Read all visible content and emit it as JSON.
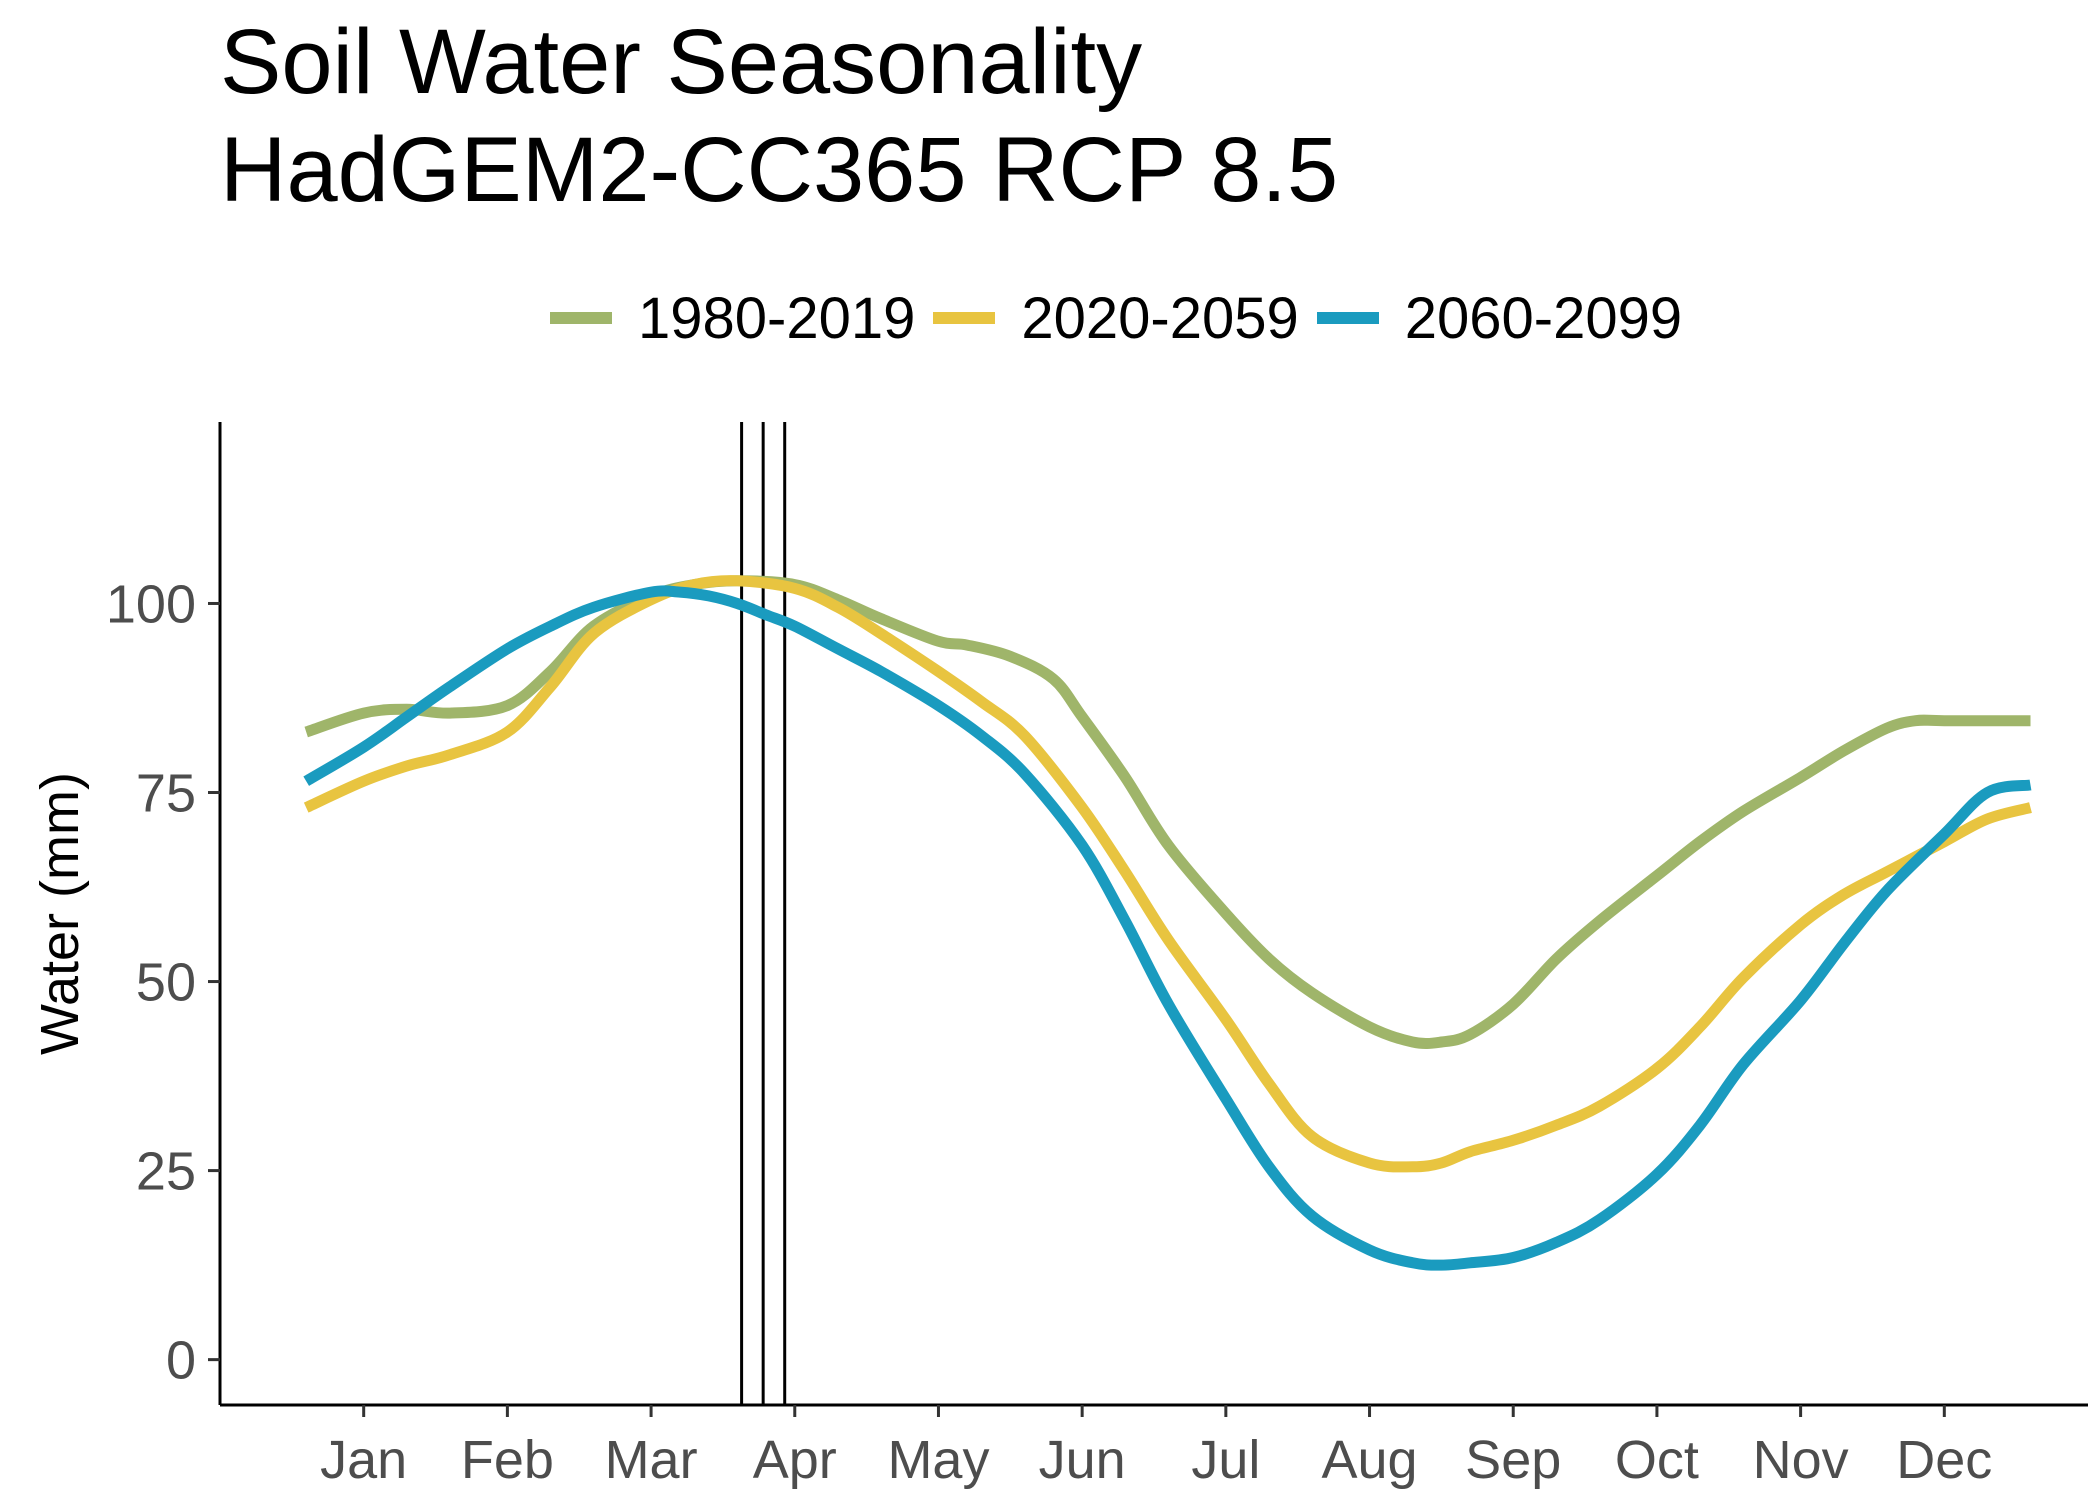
{
  "chart_data": {
    "type": "line",
    "title_lines": [
      "Soil Water Seasonality",
      "HadGEM2-CC365 RCP 8.5"
    ],
    "xlabel": "",
    "ylabel": "Water (mm)",
    "x_tick_labels": [
      "Jan",
      "Feb",
      "Mar",
      "Apr",
      "May",
      "Jun",
      "Jul",
      "Aug",
      "Sep",
      "Oct",
      "Nov",
      "Dec"
    ],
    "x_tick_positions_month": [
      1,
      2,
      3,
      4,
      5,
      6,
      7,
      8,
      9,
      10,
      11,
      12
    ],
    "x_range_month": [
      0.0,
      13.0
    ],
    "y_ticks": [
      0,
      25,
      50,
      75,
      100
    ],
    "y_range": [
      -6,
      124
    ],
    "grid": false,
    "legend_position": "top",
    "vertical_lines_month": [
      3.63,
      3.78,
      3.93
    ],
    "series": [
      {
        "name": "1980-2019",
        "color": "#9fb56a",
        "x": [
          0.6,
          1.0,
          1.3,
          1.6,
          2.0,
          2.3,
          2.6,
          3.0,
          3.3,
          3.6,
          4.0,
          4.3,
          4.6,
          5.0,
          5.2,
          5.5,
          5.8,
          6.0,
          6.3,
          6.6,
          7.0,
          7.3,
          7.6,
          8.0,
          8.3,
          8.5,
          8.7,
          9.0,
          9.3,
          9.6,
          10.0,
          10.3,
          10.6,
          11.0,
          11.3,
          11.6,
          11.8,
          12.0,
          12.6
        ],
        "y": [
          83,
          85.5,
          86,
          85.5,
          86.5,
          91,
          97,
          101,
          102.5,
          103,
          102.5,
          100.5,
          98,
          95,
          94.5,
          93,
          90,
          85,
          77,
          68,
          59,
          53,
          48.5,
          44,
          42,
          42,
          43,
          47,
          53,
          58,
          64,
          68.5,
          72.5,
          77,
          80.5,
          83.5,
          84.5,
          84.5,
          84.5
        ]
      },
      {
        "name": "2020-2059",
        "color": "#e8c440",
        "x": [
          0.6,
          1.0,
          1.3,
          1.6,
          2.0,
          2.3,
          2.6,
          3.0,
          3.3,
          3.6,
          4.0,
          4.3,
          4.6,
          5.0,
          5.3,
          5.6,
          6.0,
          6.3,
          6.6,
          7.0,
          7.3,
          7.6,
          8.0,
          8.3,
          8.5,
          8.7,
          9.0,
          9.3,
          9.6,
          10.0,
          10.3,
          10.6,
          11.0,
          11.3,
          11.6,
          12.0,
          12.3,
          12.6
        ],
        "y": [
          73,
          76.5,
          78.5,
          80,
          83,
          89,
          96,
          100.5,
          102.5,
          103,
          102,
          99.5,
          96,
          91,
          87,
          82.5,
          73,
          64.5,
          55.5,
          45,
          36.5,
          29.5,
          26,
          25.5,
          26,
          27.5,
          29,
          31,
          33.5,
          38.5,
          44,
          50.5,
          57.5,
          61.5,
          64.5,
          68.5,
          71.5,
          73
        ]
      },
      {
        "name": "2060-2099",
        "color": "#1a9bbf",
        "x": [
          0.6,
          1.0,
          1.3,
          1.6,
          2.0,
          2.3,
          2.6,
          3.0,
          3.2,
          3.4,
          3.6,
          3.8,
          4.0,
          4.3,
          4.6,
          5.0,
          5.3,
          5.6,
          6.0,
          6.3,
          6.6,
          7.0,
          7.3,
          7.6,
          8.0,
          8.3,
          8.5,
          8.7,
          9.0,
          9.3,
          9.6,
          10.0,
          10.3,
          10.6,
          11.0,
          11.3,
          11.6,
          12.0,
          12.3,
          12.6
        ],
        "y": [
          76.5,
          81,
          85,
          89,
          94,
          97,
          99.5,
          101.5,
          101.5,
          101,
          100,
          98.5,
          97,
          94,
          91,
          86.5,
          82.5,
          77.5,
          68,
          58,
          47,
          34.5,
          25.5,
          19,
          14.5,
          12.8,
          12.5,
          12.8,
          13.5,
          15.5,
          18.5,
          24.5,
          31,
          39,
          47.5,
          55,
          62,
          69.5,
          75,
          76
        ]
      }
    ]
  }
}
